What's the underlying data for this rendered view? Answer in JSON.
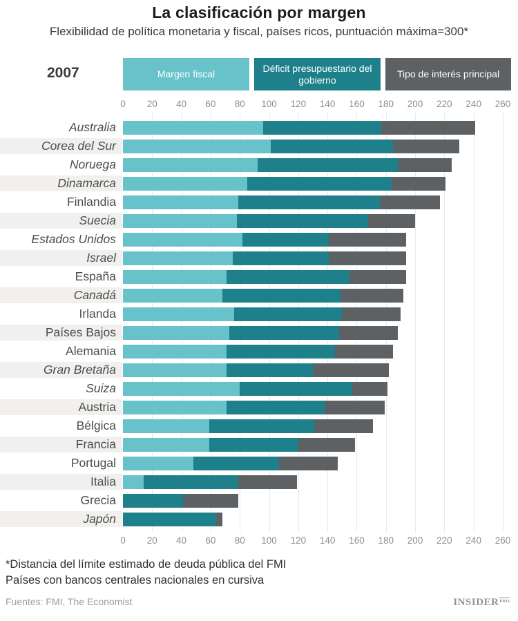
{
  "title": "La clasificación por margen",
  "subtitle": "Flexibilidad de política monetaria y fiscal, países ricos, puntuación máxima=300*",
  "year_label": "2007",
  "legend": [
    {
      "label": "Margen fiscal",
      "color": "#68c2ca"
    },
    {
      "label": "Déficit presupuestario del gobierno",
      "color": "#1e808b"
    },
    {
      "label": "Tipo de interés principal",
      "color": "#5d6164"
    }
  ],
  "axis": {
    "min": 0,
    "max": 260,
    "step": 20,
    "ticks": [
      0,
      20,
      40,
      60,
      80,
      100,
      120,
      140,
      160,
      180,
      200,
      220,
      240,
      260
    ]
  },
  "chart_data": {
    "type": "bar",
    "stacked": true,
    "orientation": "horizontal",
    "title": "La clasificación por margen",
    "subtitle": "Flexibilidad de política monetaria y fiscal, países ricos, puntuación máxima=300*",
    "xlabel": "",
    "ylabel": "",
    "xlim": [
      0,
      260
    ],
    "grid": true,
    "legend_position": "top",
    "categories": [
      "Australia",
      "Corea del Sur",
      "Noruega",
      "Dinamarca",
      "Finlandia",
      "Suecia",
      "Estados Unidos",
      "Israel",
      "España",
      "Canadá",
      "Irlanda",
      "Países Bajos",
      "Alemania",
      "Gran Bretaña",
      "Suiza",
      "Austria",
      "Bélgica",
      "Francia",
      "Portugal",
      "Italia",
      "Grecia",
      "Japón"
    ],
    "italic_categories": [
      true,
      true,
      true,
      true,
      false,
      true,
      true,
      true,
      false,
      true,
      false,
      false,
      false,
      true,
      true,
      false,
      false,
      false,
      false,
      false,
      false,
      true
    ],
    "series": [
      {
        "key": "fiscal",
        "name": "Margen fiscal",
        "color": "#68c2ca",
        "values": [
          96,
          101,
          92,
          85,
          79,
          78,
          82,
          75,
          71,
          68,
          76,
          73,
          71,
          71,
          80,
          71,
          59,
          59,
          48,
          14,
          0,
          0
        ]
      },
      {
        "key": "deficit",
        "name": "Déficit presupuestario del gobierno",
        "color": "#1e808b",
        "values": [
          81,
          84,
          96,
          99,
          97,
          90,
          59,
          66,
          84,
          81,
          74,
          75,
          74,
          59,
          77,
          67,
          72,
          61,
          59,
          65,
          41,
          64
        ]
      },
      {
        "key": "interest",
        "name": "Tipo de interés principal",
        "color": "#5d6164",
        "values": [
          64,
          45,
          37,
          37,
          41,
          32,
          53,
          53,
          39,
          43,
          40,
          40,
          40,
          52,
          24,
          41,
          40,
          39,
          40,
          40,
          38,
          4
        ]
      }
    ],
    "totals": [
      241,
      230,
      225,
      221,
      217,
      200,
      194,
      194,
      194,
      192,
      190,
      188,
      185,
      182,
      181,
      179,
      171,
      159,
      147,
      119,
      79,
      68
    ]
  },
  "footnotes": [
    "*Distancia del límite estimado de deuda pública del FMI",
    "Países con bancos centrales nacionales en cursiva"
  ],
  "source": "Fuentes: FMI, The Economist",
  "logo": {
    "text": "INSIDER",
    "suffix": "PRO"
  }
}
